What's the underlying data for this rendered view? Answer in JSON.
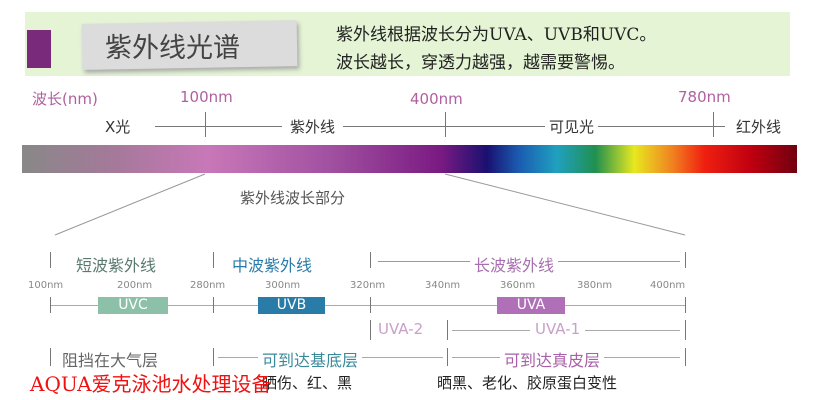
{
  "header": {
    "title": "紫外线光谱",
    "line1": "紫外线根据波长分为UVA、UVB和UVC。",
    "line2": "波长越长，穿透力越强，越需要警惕。"
  },
  "scale": {
    "unit_label": "波长(nm)",
    "marks": [
      "100nm",
      "400nm",
      "780nm"
    ],
    "regions": [
      "X光",
      "紫外线",
      "可见光",
      "红外线"
    ]
  },
  "detail": {
    "title": "紫外线波长部分",
    "bands": [
      "短波紫外线",
      "中波紫外线",
      "长波紫外线"
    ],
    "nm": [
      "100nm",
      "200nm",
      "280nm",
      "300nm",
      "320nm",
      "340nm",
      "360nm",
      "380nm",
      "400nm"
    ],
    "badges": [
      "UVC",
      "UVB",
      "UVA"
    ],
    "uva_sub": [
      "UVA-2",
      "UVA-1"
    ],
    "reach": [
      "阻挡在大气层",
      "可到达基底层",
      "可到达真皮层"
    ],
    "effects": [
      "晒伤、红、黑",
      "晒黑、老化、胶原蛋白变性"
    ]
  },
  "colors": {
    "uvc": "#8cc0a8",
    "uvb": "#2a7ca8",
    "uva": "#b070b8",
    "accent": "#b0609e"
  },
  "watermark": "AQUA爱克泳池水处理设备"
}
